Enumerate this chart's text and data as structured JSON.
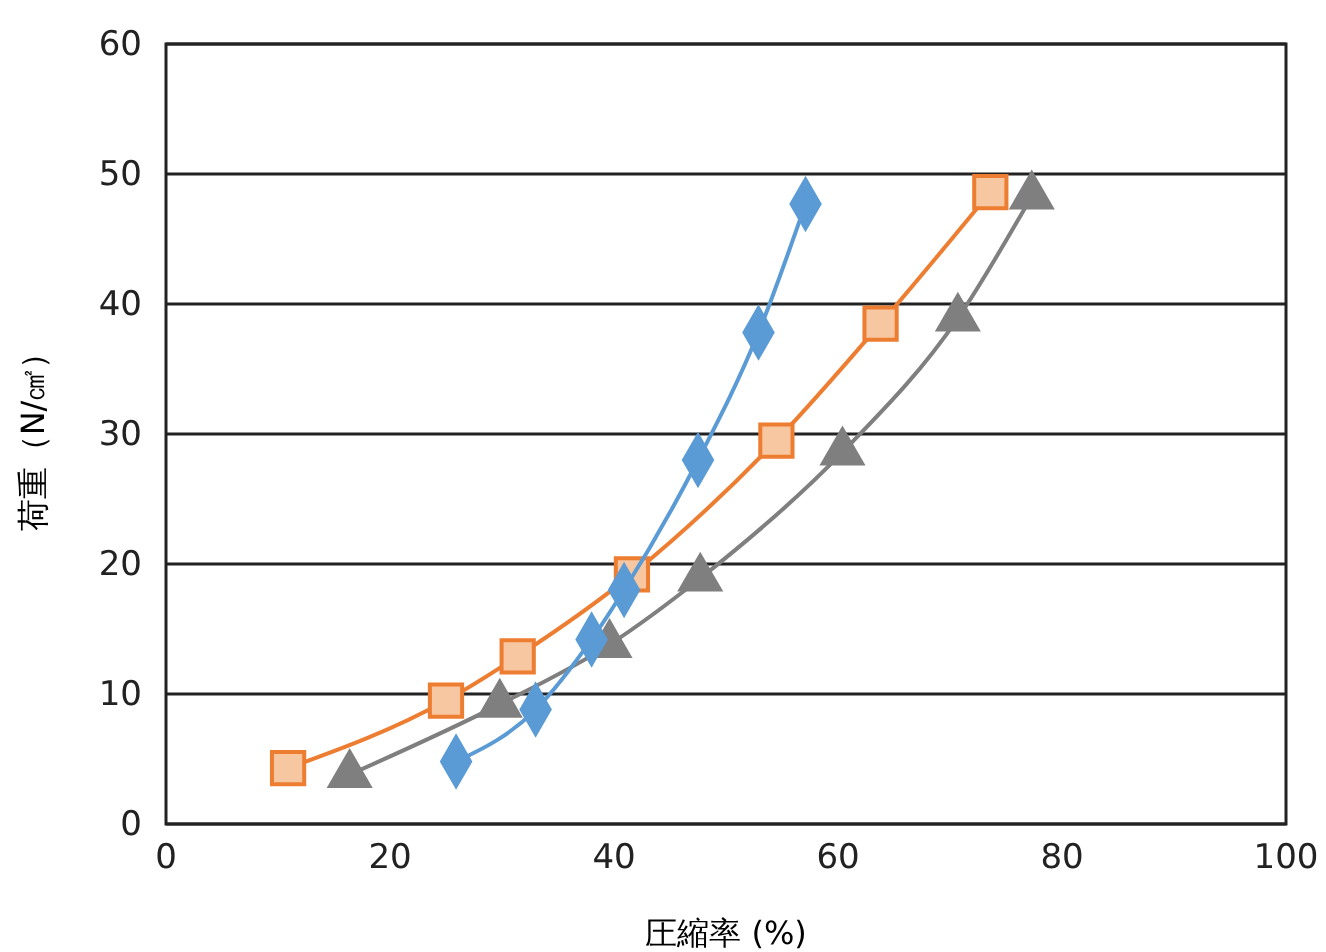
{
  "chart_data": {
    "type": "line",
    "xlabel": "圧縮率 (%)",
    "ylabel": "荷重（N/㎠）",
    "xlim": [
      0,
      100
    ],
    "xticks": [
      0,
      20,
      40,
      60,
      80,
      100
    ],
    "ylim": [
      0,
      60
    ],
    "yticks": [
      0,
      10,
      20,
      30,
      40,
      50,
      60
    ],
    "grid": "y",
    "series": [
      {
        "color": "#7f7f7f",
        "marker": "triangle",
        "x": [
          16.4,
          29.8,
          39.6,
          47.7,
          60.4,
          70.7,
          77.3
        ],
        "values": [
          3.8,
          9.2,
          13.8,
          18.9,
          28.6,
          38.9,
          48.3
        ]
      },
      {
        "color": "#ed7d31",
        "marker": "square",
        "x": [
          10.9,
          25,
          31.4,
          41.6,
          54.5,
          63.8,
          73.6
        ],
        "values": [
          4.3,
          9.5,
          12.9,
          19.2,
          29.5,
          38.5,
          48.6
        ]
      },
      {
        "color": "#5b9bd5",
        "marker": "diamond",
        "x": [
          25.9,
          33,
          38,
          40.9,
          47.5,
          52.9,
          57.1
        ],
        "values": [
          4.8,
          8.8,
          14.2,
          18,
          28,
          37.8,
          47.7
        ]
      }
    ]
  }
}
